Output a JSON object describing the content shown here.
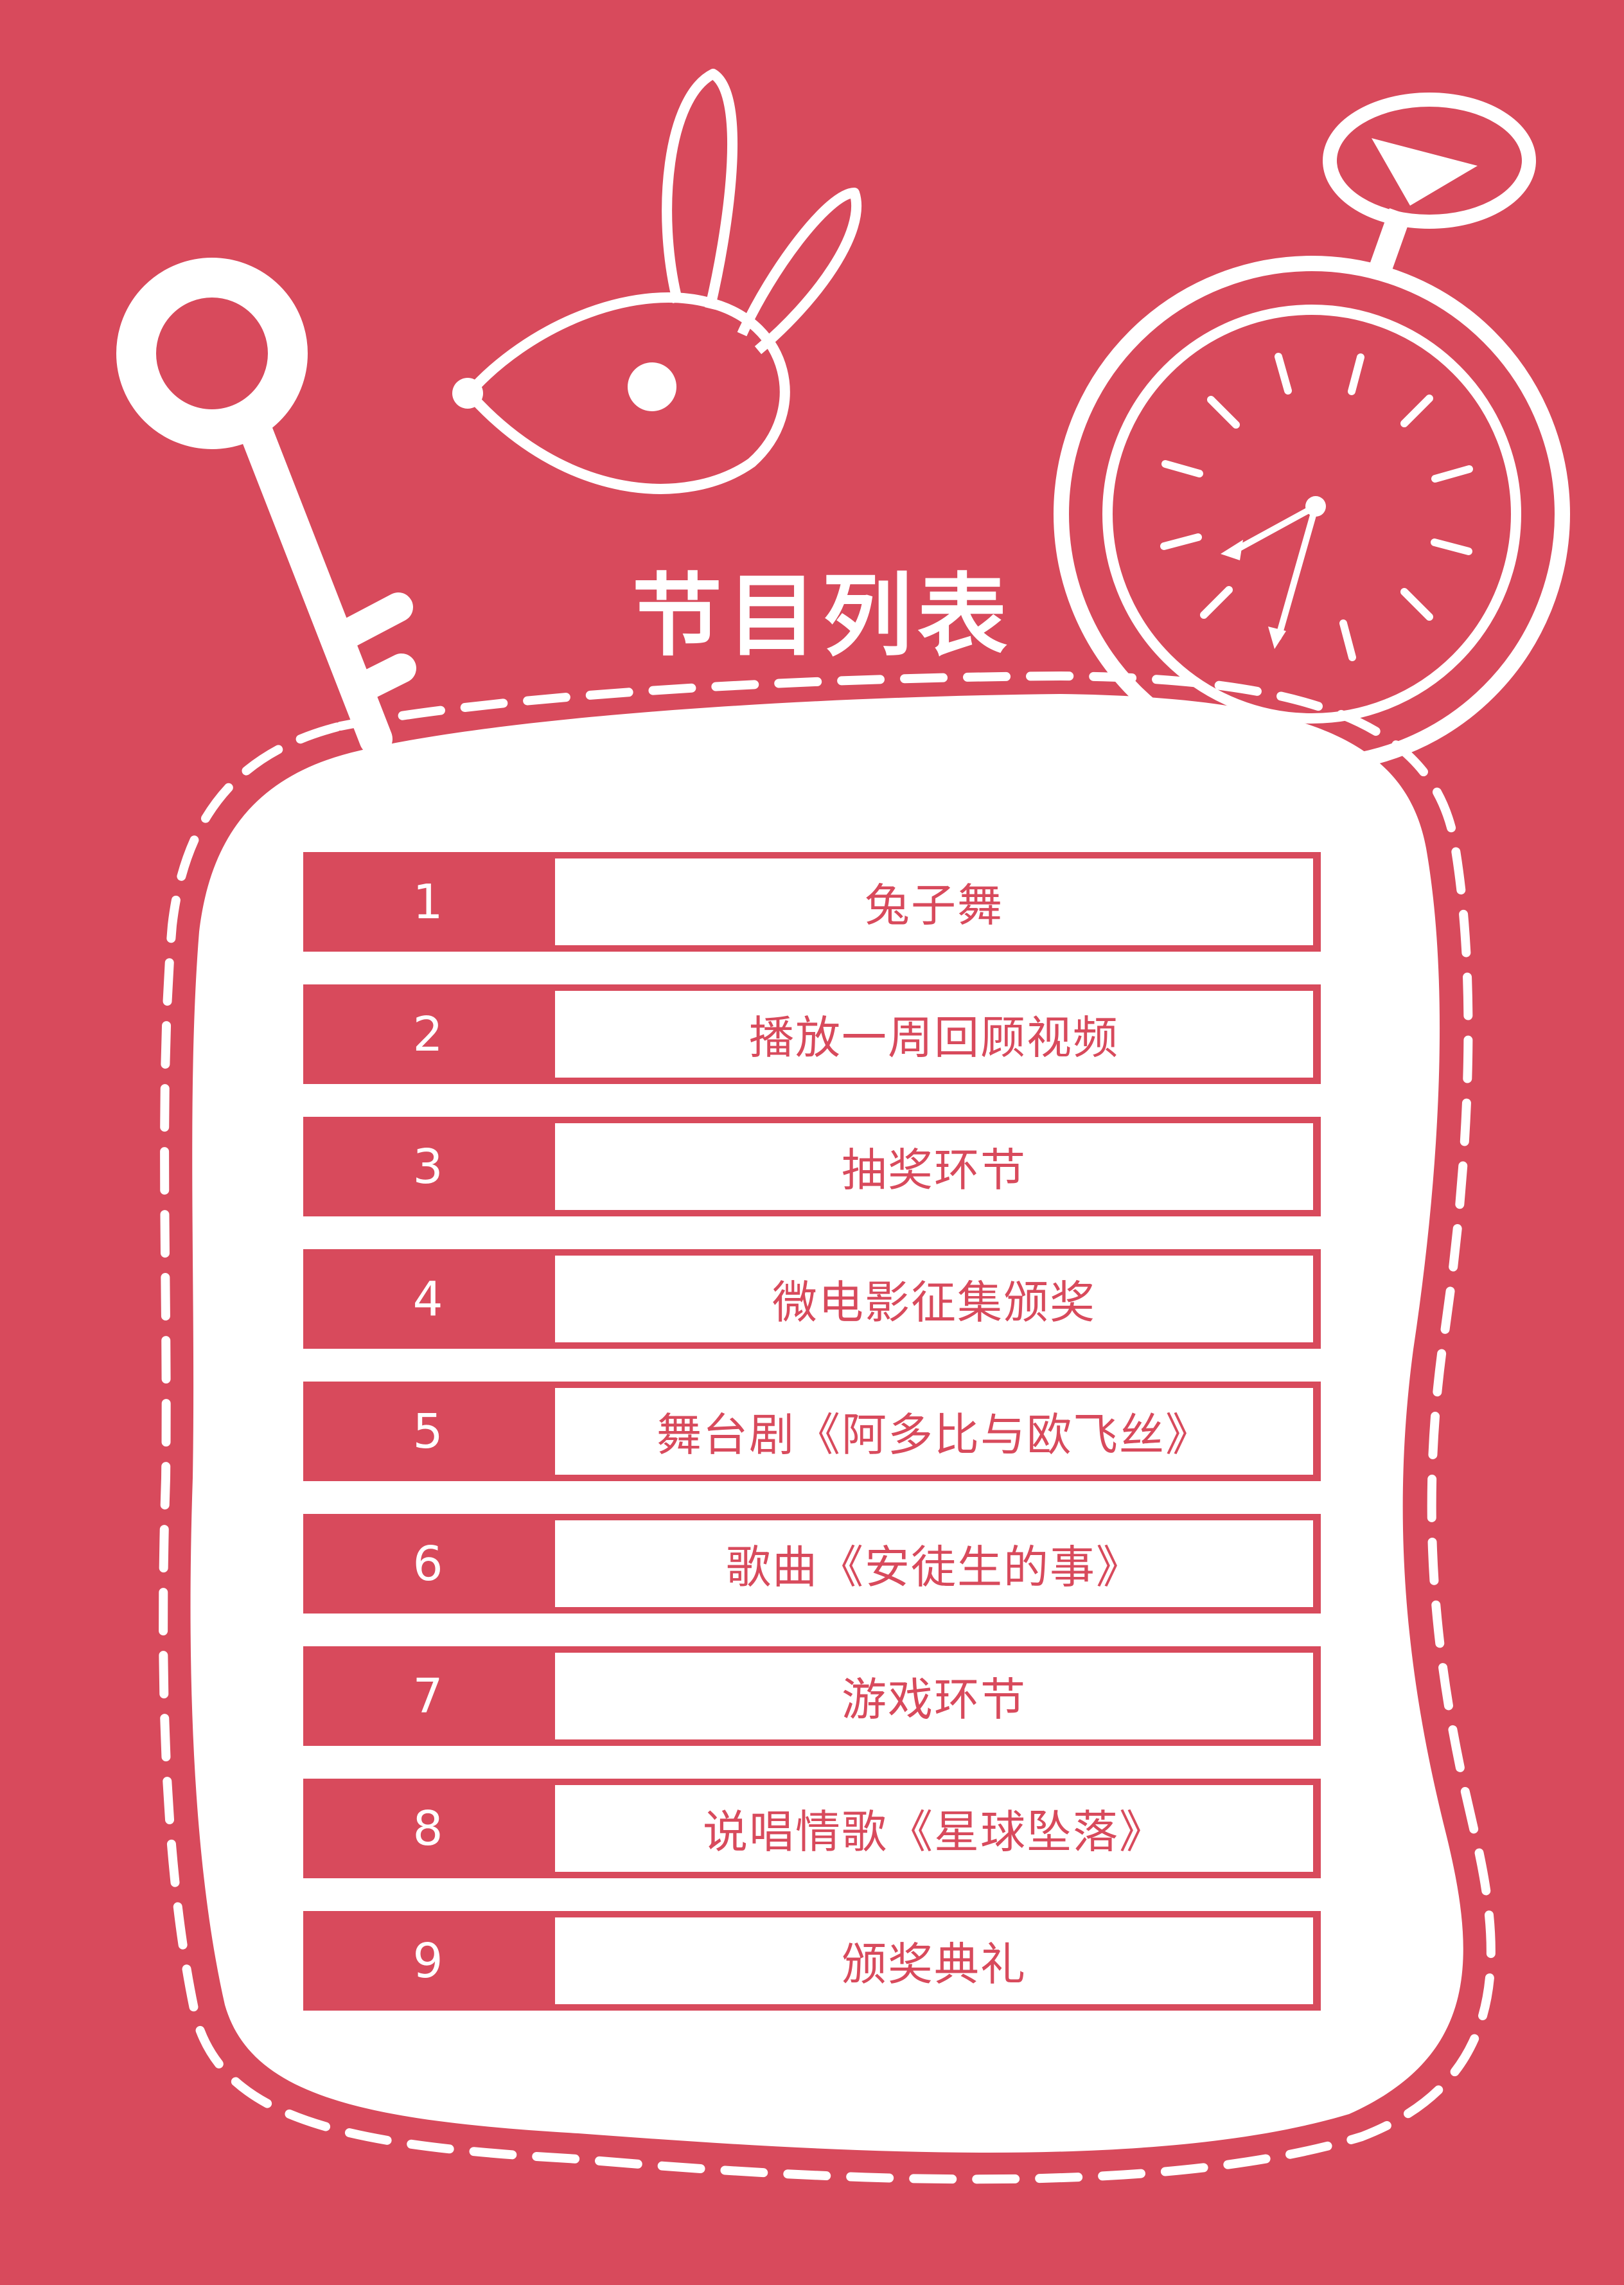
{
  "title": "节目列表",
  "colors": {
    "background": "#d84a5c",
    "panel": "#ffffff",
    "accent": "#d84a5c"
  },
  "decorations": [
    "key-icon",
    "rabbit-icon",
    "stopwatch-icon"
  ],
  "programs": [
    {
      "number": "1",
      "label": "兔子舞"
    },
    {
      "number": "2",
      "label": "播放一周回顾视频"
    },
    {
      "number": "3",
      "label": "抽奖环节"
    },
    {
      "number": "4",
      "label": "微电影征集颁奖"
    },
    {
      "number": "5",
      "label": "舞台剧《阿多比与欧飞丝》"
    },
    {
      "number": "6",
      "label": "歌曲《安徒生的事》"
    },
    {
      "number": "7",
      "label": "游戏环节"
    },
    {
      "number": "8",
      "label": "说唱情歌《星球坠落》"
    },
    {
      "number": "9",
      "label": "颁奖典礼"
    }
  ]
}
